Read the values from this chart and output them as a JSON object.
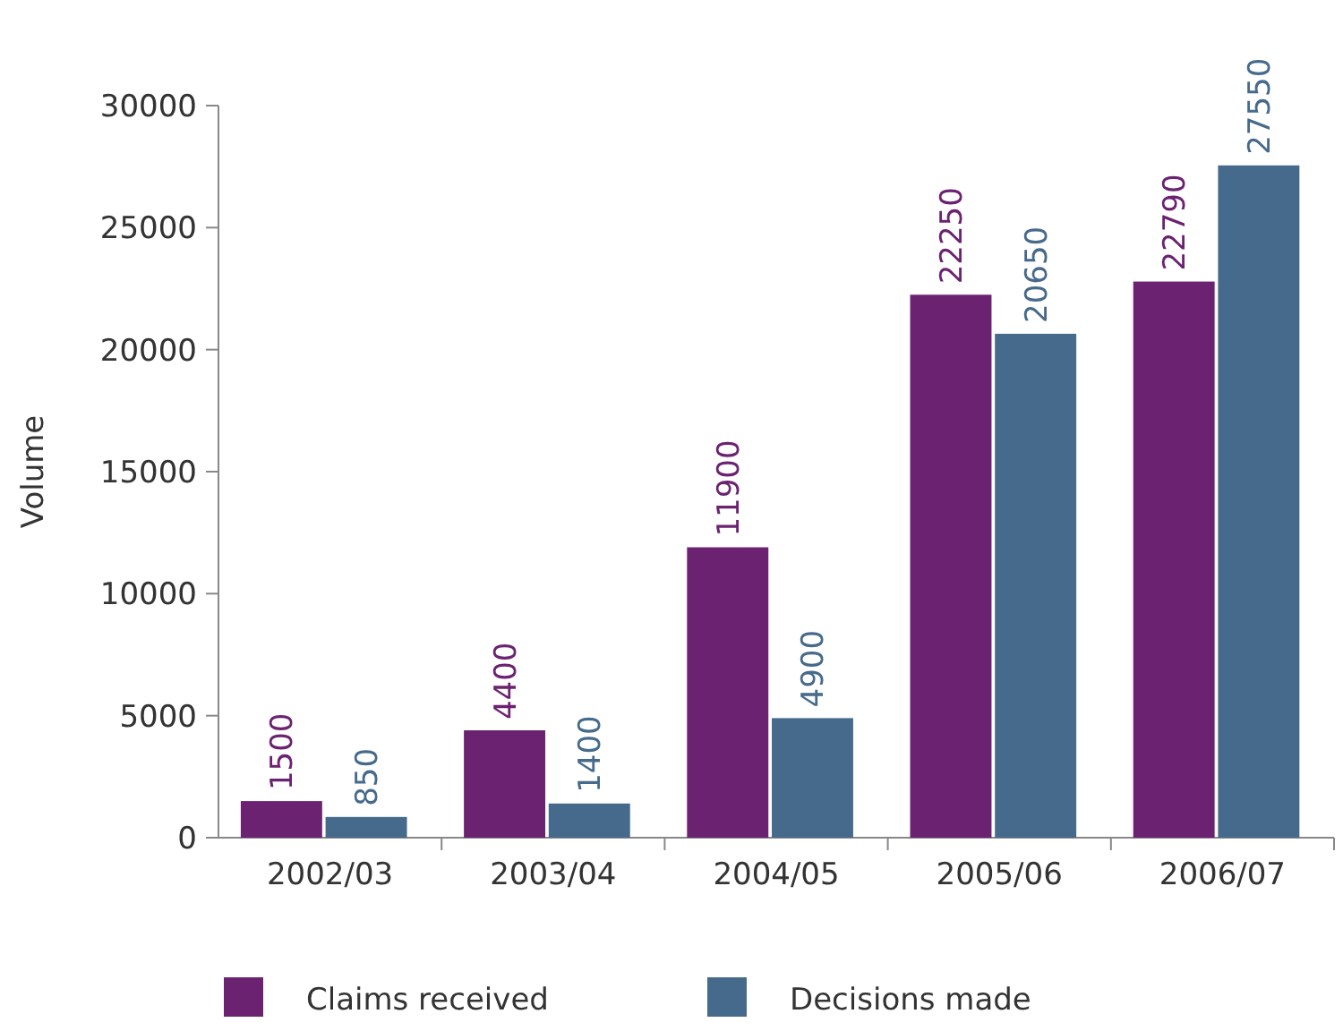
{
  "chart_data": {
    "type": "bar",
    "ylabel": "Volume",
    "categories": [
      "2002/03",
      "2003/04",
      "2004/05",
      "2005/06",
      "2006/07"
    ],
    "series": [
      {
        "name": "Claims received",
        "color": "#6b2271",
        "values": [
          1500,
          4400,
          11900,
          22250,
          22790
        ]
      },
      {
        "name": "Decisions made",
        "color": "#466a8c",
        "values": [
          850,
          1400,
          4900,
          20650,
          27550
        ]
      }
    ],
    "ylim": [
      0,
      30000
    ],
    "yticks": [
      0,
      5000,
      10000,
      15000,
      20000,
      25000,
      30000
    ],
    "data_labels": true,
    "grid": false,
    "legend": "bottom"
  }
}
